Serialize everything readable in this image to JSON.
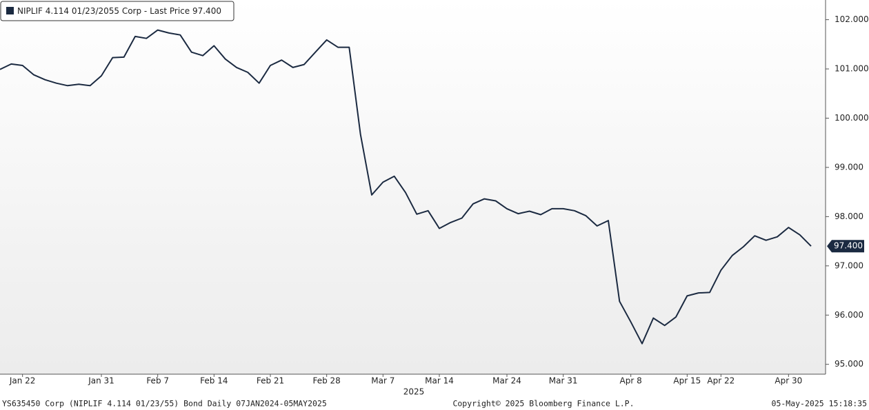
{
  "chart_data": {
    "type": "line",
    "categories": [
      null,
      null,
      "Jan 22",
      null,
      null,
      null,
      null,
      null,
      null,
      "Jan 31",
      null,
      null,
      null,
      null,
      "Feb 7",
      null,
      null,
      null,
      null,
      "Feb 14",
      null,
      null,
      null,
      null,
      "Feb 21",
      null,
      null,
      null,
      null,
      "Feb 28",
      null,
      null,
      null,
      null,
      "Mar 7",
      null,
      null,
      null,
      null,
      "Mar 14",
      null,
      null,
      null,
      null,
      null,
      "Mar 24",
      null,
      null,
      null,
      null,
      "Mar 31",
      null,
      null,
      null,
      null,
      null,
      "Apr 8",
      null,
      null,
      null,
      null,
      "Apr 15",
      null,
      null,
      "Apr 22",
      null,
      null,
      null,
      null,
      null,
      "Apr 30",
      null,
      null
    ],
    "year_label": "2025",
    "series": [
      {
        "name": "NIPLIF 4.114 01/23/2055 Corp - Last Price 97.400",
        "color": "#1b2a41",
        "values": [
          100.99,
          101.1,
          101.07,
          100.88,
          100.78,
          100.71,
          100.66,
          100.69,
          100.66,
          100.86,
          101.23,
          101.24,
          101.66,
          101.62,
          101.79,
          101.73,
          101.69,
          101.34,
          101.27,
          101.47,
          101.2,
          101.03,
          100.93,
          100.71,
          101.07,
          101.18,
          101.03,
          101.09,
          101.34,
          101.59,
          101.44,
          101.44,
          99.67,
          98.44,
          98.7,
          98.82,
          98.49,
          98.05,
          98.12,
          97.76,
          97.88,
          97.97,
          98.26,
          98.36,
          98.32,
          98.16,
          98.06,
          98.11,
          98.04,
          98.16,
          98.16,
          98.12,
          98.02,
          97.81,
          97.92,
          96.28,
          95.86,
          95.42,
          95.94,
          95.79,
          95.96,
          96.39,
          96.45,
          96.46,
          96.91,
          97.21,
          97.39,
          97.61,
          97.52,
          97.59,
          97.78,
          97.63,
          97.4
        ],
        "value_labels": [
          null,
          null,
          null,
          null,
          null,
          null,
          null,
          null,
          null,
          null,
          null,
          null,
          null,
          null,
          null,
          null,
          null,
          null,
          null,
          null,
          null,
          null,
          null,
          null,
          null,
          null,
          null,
          null,
          null,
          null,
          null,
          null,
          null,
          null,
          null,
          null,
          null,
          null,
          null,
          null,
          null,
          null,
          null,
          null,
          null,
          null,
          null,
          null,
          null,
          null,
          null,
          null,
          null,
          null,
          null,
          null,
          null,
          null,
          null,
          null,
          null,
          null,
          null,
          null,
          null,
          null,
          null,
          null,
          null,
          null,
          null,
          null,
          "97.400"
        ]
      }
    ],
    "ylim": [
      94.8,
      102.4
    ],
    "yticks": [
      {
        "value": 95,
        "label": "95.000"
      },
      {
        "value": 96,
        "label": "96.000"
      },
      {
        "value": 97,
        "label": "97.000"
      },
      {
        "value": 98,
        "label": "98.000"
      },
      {
        "value": 99,
        "label": "99.000"
      },
      {
        "value": 100,
        "label": "100.000"
      },
      {
        "value": 101,
        "label": "101.000"
      },
      {
        "value": 102,
        "label": "102.000"
      }
    ],
    "grid": false
  },
  "footer": {
    "left": "YS635450 Corp (NIPLIF 4.114 01/23/55) Bond  Daily 07JAN2024-05MAY2025",
    "center": "Copyright© 2025 Bloomberg Finance L.P.",
    "right": "05-May-2025 15:18:35"
  }
}
